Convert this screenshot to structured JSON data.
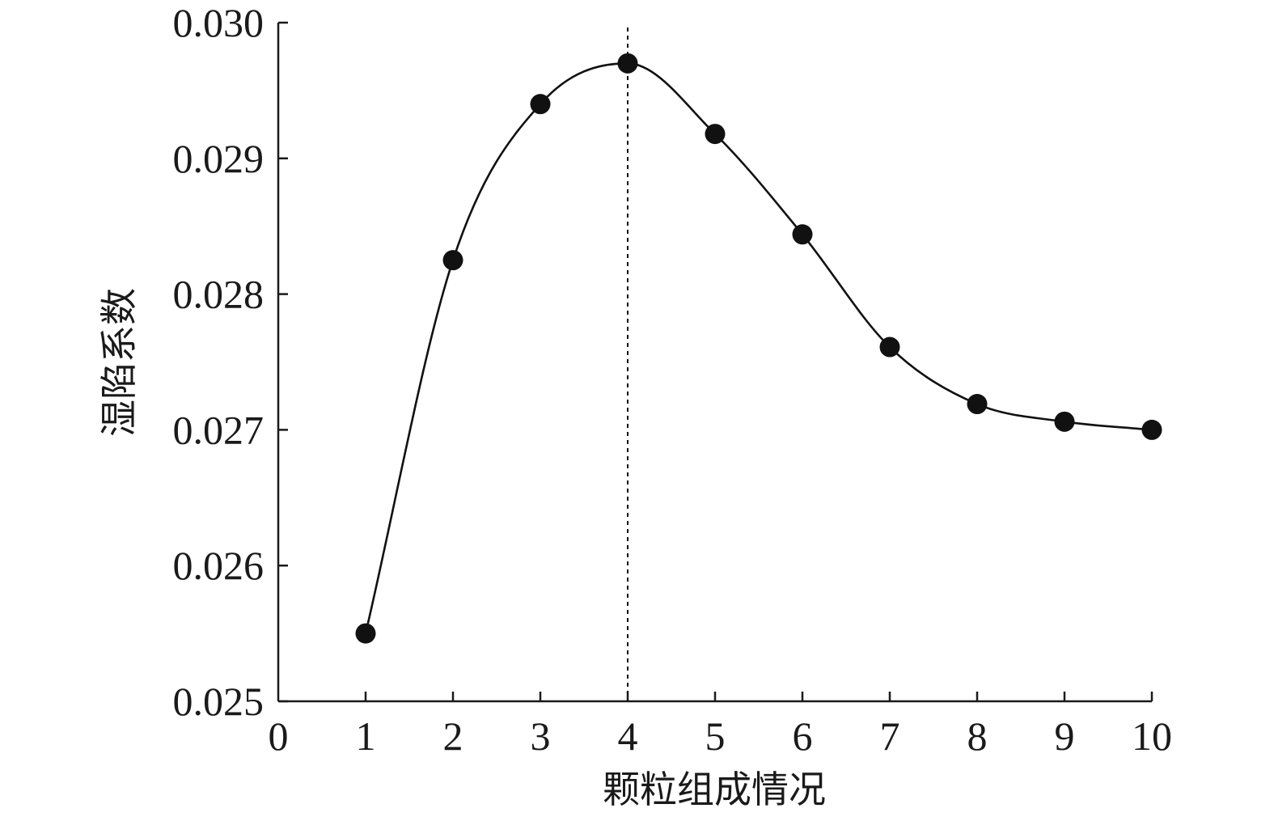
{
  "chart_data": {
    "type": "line",
    "title": "",
    "xlabel": "颗粒组成情况",
    "ylabel": "湿陷系数",
    "xlim": [
      0,
      10
    ],
    "ylim": [
      0.025,
      0.03
    ],
    "xticks": [
      "0",
      "1",
      "2",
      "3",
      "4",
      "5",
      "6",
      "7",
      "8",
      "9",
      "10"
    ],
    "yticks": [
      "0.025",
      "0.026",
      "0.027",
      "0.028",
      "0.029",
      "0.030"
    ],
    "grid": false,
    "smooth": true,
    "marker": "filled-circle",
    "reference_line": {
      "x": 4,
      "style": "dashed"
    },
    "series": [
      {
        "x": [
          1,
          2,
          3,
          4,
          5,
          6,
          7,
          8,
          9,
          10
        ],
        "values": [
          0.0255,
          0.02825,
          0.0294,
          0.0297,
          0.02918,
          0.02844,
          0.02761,
          0.02719,
          0.02706,
          0.027
        ]
      }
    ],
    "colors": {
      "line": "#111111",
      "marker": "#111111",
      "axis": "#1a1a1a",
      "background": "#ffffff"
    }
  }
}
